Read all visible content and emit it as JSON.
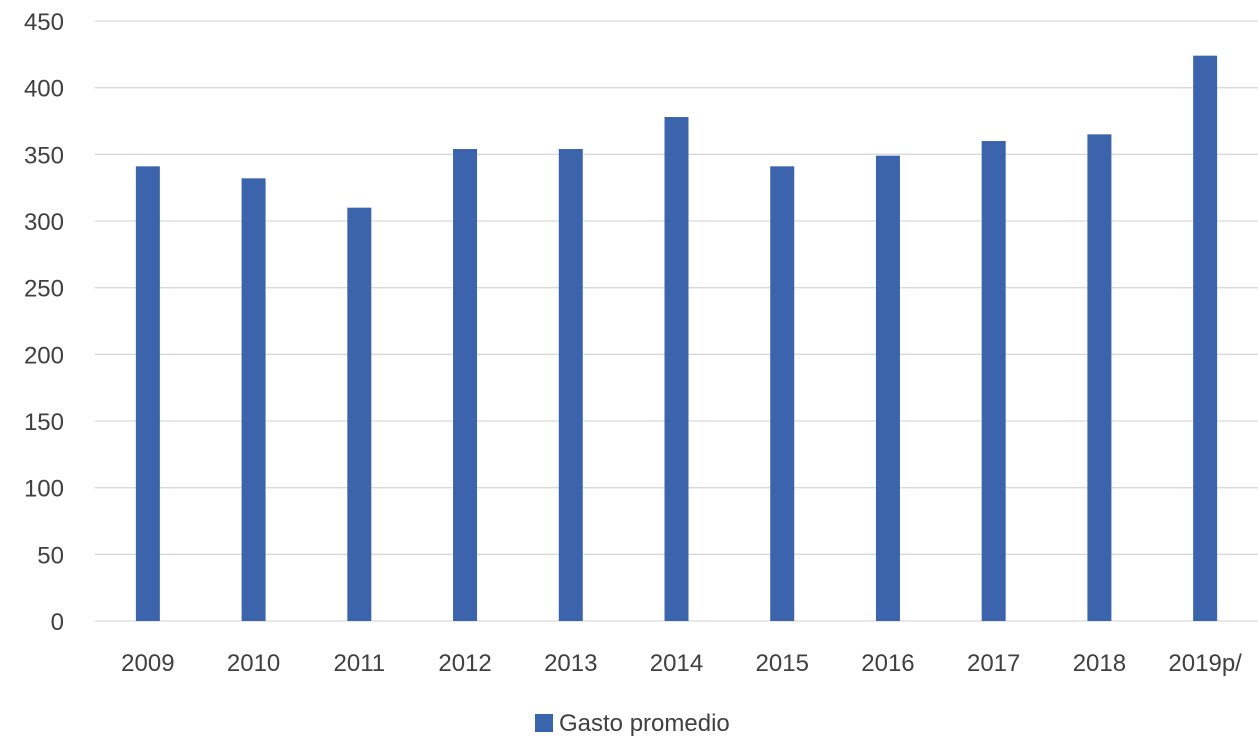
{
  "chart_data": {
    "type": "bar",
    "categories": [
      "2009",
      "2010",
      "2011",
      "2012",
      "2013",
      "2014",
      "2015",
      "2016",
      "2017",
      "2018",
      "2019p/"
    ],
    "series": [
      {
        "name": "Gasto promedio",
        "values": [
          341,
          332,
          310,
          354,
          354,
          378,
          341,
          349,
          360,
          365,
          424
        ],
        "color": "#3c64ad"
      }
    ],
    "title": "",
    "xlabel": "",
    "ylabel": "",
    "ylim": [
      0,
      450
    ],
    "yticks": [
      0,
      50,
      100,
      150,
      200,
      250,
      300,
      350,
      400,
      450
    ],
    "grid": true,
    "legend_position": "bottom-center"
  }
}
